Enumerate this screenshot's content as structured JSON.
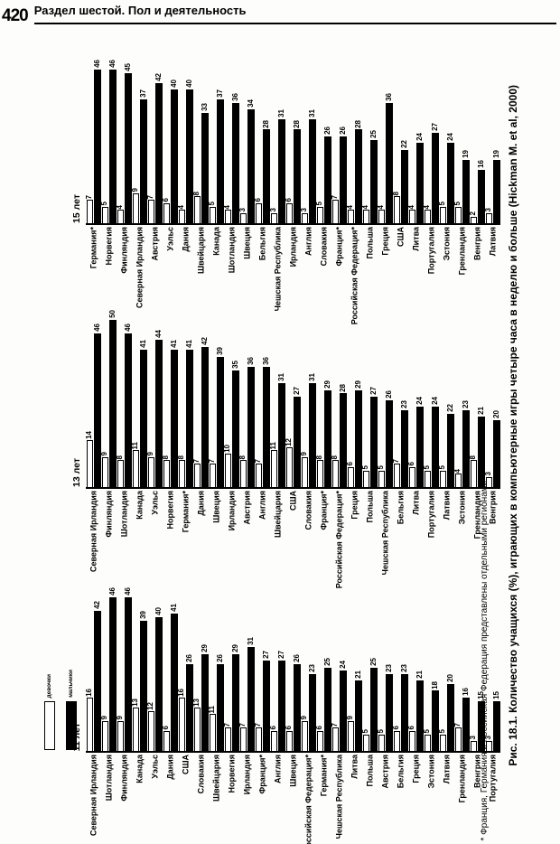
{
  "page": {
    "number": "420",
    "header_title": "Раздел шестой. Пол и деятельность"
  },
  "figure": {
    "caption_bold": "Рис. 18.1.",
    "caption_text": " Количество учащихся (%), играющих в компьютерные игры четыре часа в неделю и больше (Hickman M. et al, 2000)",
    "footnote": "* Франция, Германия и Российская Федерация представлены отдельными регионами.",
    "legend": {
      "girls": "девочки",
      "boys": "мальчики"
    },
    "colors": {
      "girls": "#ffffff",
      "boys": "#000000"
    }
  },
  "chart_data": [
    {
      "type": "bar",
      "panel_label": "15 лет",
      "orientation": "vertical, text rotated 90° (reads bottom-to-top)",
      "ylim": [
        0,
        50
      ],
      "grid": false,
      "value_labels": true,
      "categories": [
        "Германия*",
        "Норвегия",
        "Финляндия",
        "Северная Ирландия",
        "Австрия",
        "Уэльс",
        "Дания",
        "Швейцария",
        "Канада",
        "Шотландия",
        "Швеция",
        "Бельгия",
        "Чешская Республика",
        "Ирландия",
        "Англия",
        "Словакия",
        "Франция*",
        "Российская Федерация*",
        "Польша",
        "Греция",
        "США",
        "Литва",
        "Португалия",
        "Эстония",
        "Гренландия",
        "Венгрия",
        "Латвия"
      ],
      "series": [
        {
          "name": "девочки",
          "color": "#ffffff",
          "values": [
            7,
            5,
            4,
            9,
            7,
            6,
            4,
            8,
            5,
            4,
            3,
            6,
            3,
            6,
            3,
            5,
            7,
            4,
            4,
            4,
            8,
            4,
            4,
            5,
            5,
            2,
            3
          ]
        },
        {
          "name": "мальчики",
          "color": "#000000",
          "values": [
            46,
            46,
            45,
            37,
            42,
            40,
            40,
            33,
            37,
            36,
            34,
            28,
            31,
            28,
            31,
            26,
            26,
            28,
            25,
            36,
            22,
            24,
            27,
            24,
            19,
            16,
            19
          ]
        }
      ]
    },
    {
      "type": "bar",
      "panel_label": "13 лет",
      "orientation": "vertical, text rotated 90° (reads bottom-to-top)",
      "ylim": [
        0,
        50
      ],
      "grid": false,
      "value_labels": true,
      "categories": [
        "Северная Ирландия",
        "Финляндия",
        "Шотландия",
        "Канада",
        "Уэльс",
        "Норвегия",
        "Германия*",
        "Дания",
        "Швеция",
        "Ирландия",
        "Австрия",
        "Англия",
        "Швейцария",
        "США",
        "Словакия",
        "Франция*",
        "Российская Федерация*",
        "Греция",
        "Польша",
        "Чешская Республика",
        "Бельгия",
        "Литва",
        "Португалия",
        "Латвия",
        "Эстония",
        "Гренландия",
        "Венгрия"
      ],
      "series": [
        {
          "name": "девочки",
          "color": "#ffffff",
          "values": [
            14,
            9,
            8,
            11,
            9,
            8,
            8,
            7,
            7,
            10,
            8,
            7,
            11,
            12,
            9,
            8,
            8,
            6,
            5,
            5,
            7,
            6,
            5,
            5,
            4,
            8,
            3
          ]
        },
        {
          "name": "мальчики",
          "color": "#000000",
          "values": [
            46,
            50,
            46,
            41,
            44,
            41,
            41,
            42,
            39,
            35,
            36,
            36,
            31,
            27,
            31,
            29,
            28,
            29,
            27,
            26,
            23,
            24,
            24,
            22,
            23,
            21,
            20
          ]
        }
      ]
    },
    {
      "type": "bar",
      "panel_label": "11 лет",
      "orientation": "vertical, text rotated 90° (reads bottom-to-top)",
      "ylim": [
        0,
        50
      ],
      "grid": false,
      "value_labels": true,
      "categories": [
        "Северная Ирландия",
        "Шотландия",
        "Финляндия",
        "Канада",
        "Уэльс",
        "Дания",
        "США",
        "Словакия",
        "Швейцария",
        "Норвегия",
        "Ирландия",
        "Франция*",
        "Англия",
        "Швеция",
        "Российская Федерация*",
        "Германия*",
        "Чешская Республика",
        "Литва",
        "Польша",
        "Австрия",
        "Бельгия",
        "Греция",
        "Эстония",
        "Латвия",
        "Гренландия",
        "Венгрия",
        "Португалия"
      ],
      "series": [
        {
          "name": "девочки",
          "color": "#ffffff",
          "values": [
            16,
            9,
            9,
            13,
            12,
            6,
            16,
            13,
            11,
            7,
            7,
            7,
            6,
            6,
            9,
            6,
            7,
            9,
            5,
            5,
            6,
            6,
            5,
            5,
            7,
            3,
            3
          ]
        },
        {
          "name": "мальчики",
          "color": "#000000",
          "values": [
            42,
            46,
            46,
            39,
            40,
            41,
            26,
            29,
            26,
            29,
            31,
            27,
            27,
            26,
            23,
            25,
            24,
            21,
            25,
            23,
            23,
            21,
            18,
            20,
            16,
            15,
            15
          ]
        }
      ]
    }
  ]
}
